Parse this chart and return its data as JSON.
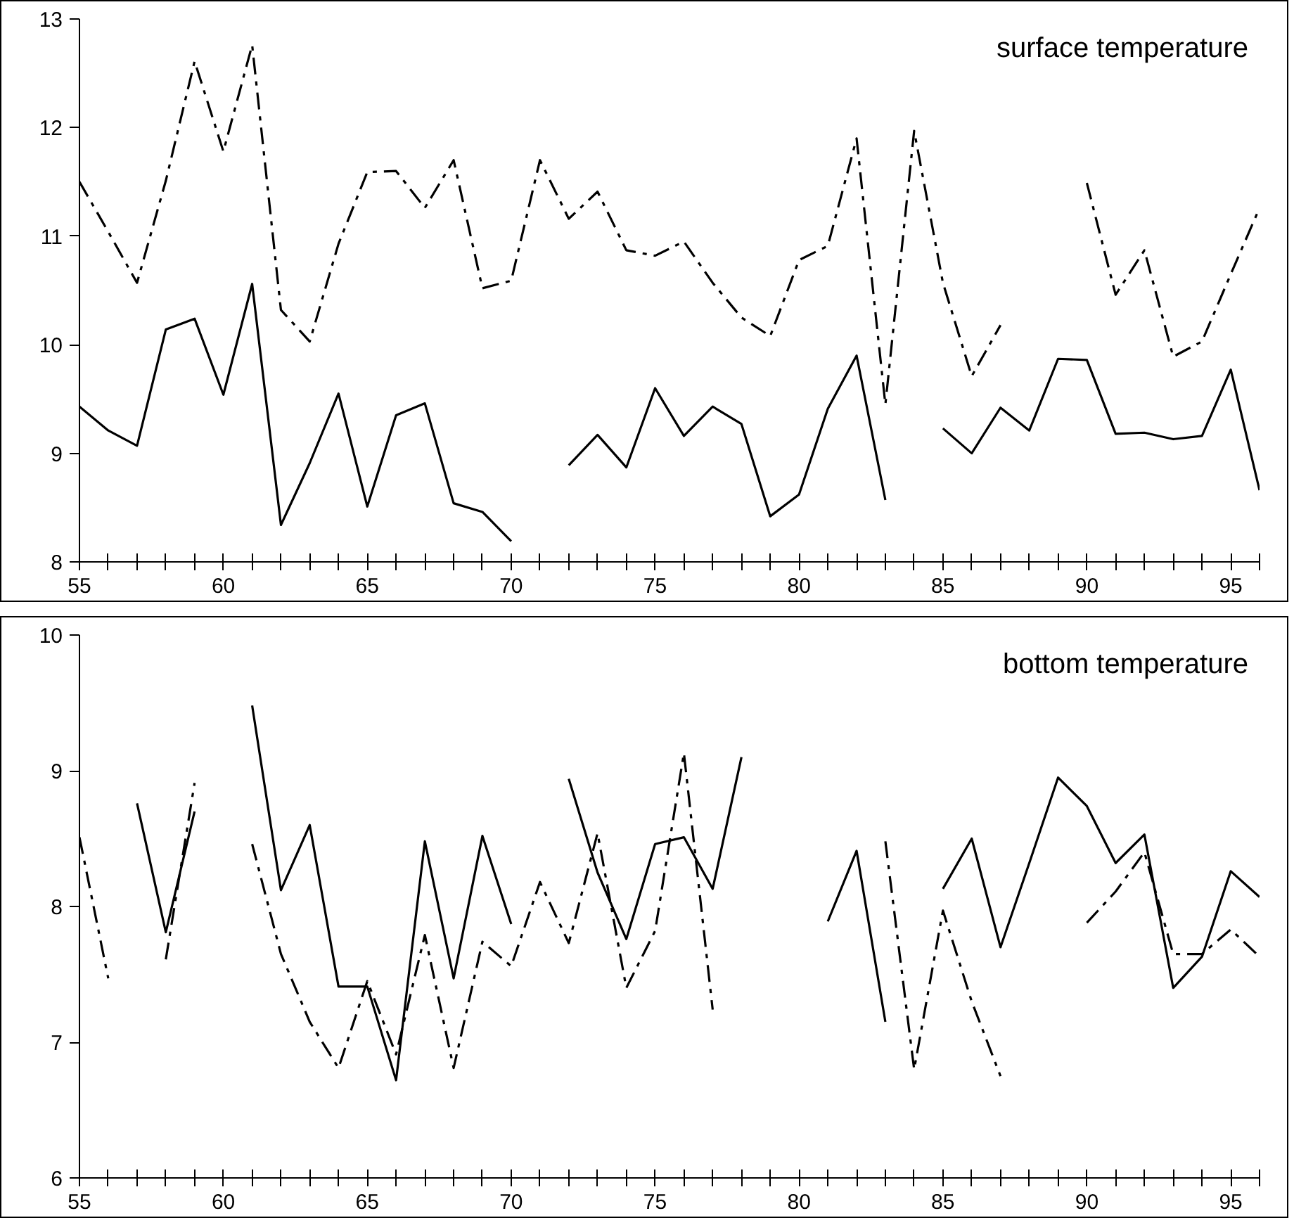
{
  "chart_data": [
    {
      "type": "line",
      "title": "surface temperature",
      "x": [
        55,
        56,
        57,
        58,
        59,
        60,
        61,
        62,
        63,
        64,
        65,
        66,
        67,
        68,
        69,
        70,
        71,
        72,
        73,
        74,
        75,
        76,
        77,
        78,
        79,
        80,
        81,
        82,
        83,
        84,
        85,
        86,
        87,
        88,
        89,
        90,
        91,
        92,
        93,
        94,
        95,
        96
      ],
      "series": [
        {
          "color": "#000000",
          "line_style": "solid",
          "values": [
            9.43,
            9.21,
            9.07,
            10.14,
            10.24,
            9.54,
            10.56,
            8.34,
            8.91,
            9.55,
            8.51,
            9.35,
            9.46,
            8.54,
            8.46,
            8.19,
            null,
            8.89,
            9.17,
            8.87,
            9.6,
            9.16,
            9.43,
            9.27,
            8.42,
            8.62,
            9.41,
            9.9,
            8.57,
            null,
            9.23,
            9.0,
            9.42,
            9.21,
            9.87,
            9.86,
            9.18,
            9.19,
            9.13,
            9.16,
            9.77,
            8.66
          ]
        },
        {
          "color": "#000000",
          "line_style": "dashed",
          "values": [
            11.5,
            11.04,
            10.57,
            11.51,
            12.61,
            11.78,
            12.76,
            10.32,
            10.03,
            10.93,
            11.59,
            11.6,
            11.26,
            11.7,
            10.52,
            10.59,
            11.7,
            11.16,
            11.41,
            10.87,
            10.82,
            10.95,
            10.57,
            10.25,
            10.08,
            10.78,
            10.91,
            11.9,
            9.45,
            11.97,
            10.57,
            9.71,
            10.18,
            null,
            null,
            11.49,
            10.46,
            10.87,
            9.89,
            10.03,
            10.65,
            11.26
          ]
        }
      ],
      "xlim": [
        55,
        96
      ],
      "ylim": [
        8,
        13
      ],
      "xticks": [
        55,
        {
          "value": 56,
          "label": null
        },
        {
          "value": 57,
          "label": null
        },
        {
          "value": 58,
          "label": null
        },
        {
          "value": 59,
          "label": null
        },
        60,
        {
          "value": 61,
          "label": null
        },
        {
          "value": 62,
          "label": null
        },
        {
          "value": 63,
          "label": null
        },
        {
          "value": 64,
          "label": null
        },
        65,
        {
          "value": 66,
          "label": null
        },
        {
          "value": 67,
          "label": null
        },
        {
          "value": 68,
          "label": null
        },
        {
          "value": 69,
          "label": null
        },
        70,
        {
          "value": 71,
          "label": null
        },
        {
          "value": 72,
          "label": null
        },
        {
          "value": 73,
          "label": null
        },
        {
          "value": 74,
          "label": null
        },
        75,
        {
          "value": 76,
          "label": null
        },
        {
          "value": 77,
          "label": null
        },
        {
          "value": 78,
          "label": null
        },
        {
          "value": 79,
          "label": null
        },
        80,
        {
          "value": 81,
          "label": null
        },
        {
          "value": 82,
          "label": null
        },
        {
          "value": 83,
          "label": null
        },
        {
          "value": 84,
          "label": null
        },
        85,
        {
          "value": 86,
          "label": null
        },
        {
          "value": 87,
          "label": null
        },
        {
          "value": 88,
          "label": null
        },
        {
          "value": 89,
          "label": null
        },
        90,
        {
          "value": 91,
          "label": null
        },
        {
          "value": 92,
          "label": null
        },
        {
          "value": 93,
          "label": null
        },
        {
          "value": 94,
          "label": null
        },
        95,
        {
          "value": 96,
          "label": null
        }
      ],
      "yticks": [
        8,
        9,
        10,
        11,
        12,
        13
      ],
      "grid": false
    },
    {
      "type": "line",
      "title": "bottom temperature",
      "x": [
        55,
        56,
        57,
        58,
        59,
        60,
        61,
        62,
        63,
        64,
        65,
        66,
        67,
        68,
        69,
        70,
        71,
        72,
        73,
        74,
        75,
        76,
        77,
        78,
        79,
        80,
        81,
        82,
        83,
        84,
        85,
        86,
        87,
        88,
        89,
        90,
        91,
        92,
        93,
        94,
        95,
        96
      ],
      "series": [
        {
          "color": "#000000",
          "line_style": "solid",
          "values": [
            null,
            null,
            8.76,
            7.81,
            8.7,
            null,
            9.48,
            8.12,
            8.6,
            7.41,
            7.41,
            6.72,
            8.48,
            7.47,
            8.52,
            7.87,
            null,
            8.94,
            8.25,
            7.76,
            8.46,
            8.51,
            8.13,
            9.1,
            null,
            null,
            7.89,
            8.41,
            7.15,
            null,
            8.13,
            8.5,
            7.7,
            8.32,
            8.95,
            8.74,
            8.32,
            8.53,
            7.4,
            7.63,
            8.26,
            8.07
          ]
        },
        {
          "color": "#000000",
          "line_style": "dashed",
          "values": [
            8.51,
            7.47,
            null,
            7.61,
            8.91,
            null,
            8.46,
            7.65,
            7.15,
            6.81,
            7.45,
            6.91,
            7.79,
            6.81,
            7.74,
            7.56,
            8.18,
            7.73,
            8.54,
            7.4,
            7.82,
            9.13,
            7.24,
            null,
            null,
            null,
            null,
            null,
            8.48,
            6.8,
            7.97,
            7.3,
            6.75,
            null,
            null,
            7.88,
            8.11,
            8.4,
            7.65,
            7.65,
            7.83,
            7.63
          ]
        }
      ],
      "xlim": [
        55,
        96
      ],
      "ylim": [
        6,
        10
      ],
      "xticks": [
        55,
        {
          "value": 56,
          "label": null
        },
        {
          "value": 57,
          "label": null
        },
        {
          "value": 58,
          "label": null
        },
        {
          "value": 59,
          "label": null
        },
        60,
        {
          "value": 61,
          "label": null
        },
        {
          "value": 62,
          "label": null
        },
        {
          "value": 63,
          "label": null
        },
        {
          "value": 64,
          "label": null
        },
        65,
        {
          "value": 66,
          "label": null
        },
        {
          "value": 67,
          "label": null
        },
        {
          "value": 68,
          "label": null
        },
        {
          "value": 69,
          "label": null
        },
        70,
        {
          "value": 71,
          "label": null
        },
        {
          "value": 72,
          "label": null
        },
        {
          "value": 73,
          "label": null
        },
        {
          "value": 74,
          "label": null
        },
        75,
        {
          "value": 76,
          "label": null
        },
        {
          "value": 77,
          "label": null
        },
        {
          "value": 78,
          "label": null
        },
        {
          "value": 79,
          "label": null
        },
        80,
        {
          "value": 81,
          "label": null
        },
        {
          "value": 82,
          "label": null
        },
        {
          "value": 83,
          "label": null
        },
        {
          "value": 84,
          "label": null
        },
        85,
        {
          "value": 86,
          "label": null
        },
        {
          "value": 87,
          "label": null
        },
        {
          "value": 88,
          "label": null
        },
        {
          "value": 89,
          "label": null
        },
        90,
        {
          "value": 91,
          "label": null
        },
        {
          "value": 92,
          "label": null
        },
        {
          "value": 93,
          "label": null
        },
        {
          "value": 94,
          "label": null
        },
        95,
        {
          "value": 96,
          "label": null
        }
      ],
      "yticks": [
        6,
        7,
        8,
        9,
        10
      ],
      "grid": false
    }
  ]
}
